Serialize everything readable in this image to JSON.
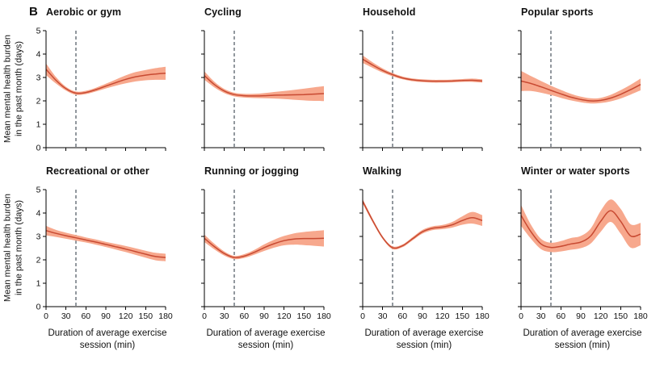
{
  "figure": {
    "label": "B",
    "y_axis_label_line1": "Mean mental health burden",
    "y_axis_label_line2": "in the past month (days)",
    "x_axis_label_line1": "Duration of average exercise",
    "x_axis_label_line2": "session (min)",
    "axes": {
      "xlim": [
        0,
        180
      ],
      "ylim": [
        0,
        5
      ],
      "x_ticks": [
        0,
        30,
        60,
        90,
        120,
        150,
        180
      ],
      "y_ticks": [
        0,
        1,
        2,
        3,
        4,
        5
      ],
      "reference_x": 45
    },
    "colors": {
      "band": "#F7A88D",
      "line": "#C84A32",
      "reference_line": "#49545E",
      "axis": "#000000",
      "text": "#111111"
    }
  },
  "chart_data": [
    {
      "type": "line",
      "title": "Aerobic or gym",
      "x": [
        0,
        15,
        30,
        45,
        60,
        75,
        90,
        105,
        120,
        135,
        150,
        165,
        180
      ],
      "mean": [
        3.35,
        2.88,
        2.52,
        2.33,
        2.36,
        2.48,
        2.63,
        2.78,
        2.92,
        3.03,
        3.1,
        3.15,
        3.18
      ],
      "lower": [
        3.1,
        2.74,
        2.44,
        2.26,
        2.29,
        2.4,
        2.53,
        2.65,
        2.75,
        2.83,
        2.88,
        2.9,
        2.9
      ],
      "upper": [
        3.6,
        3.02,
        2.6,
        2.4,
        2.43,
        2.56,
        2.73,
        2.91,
        3.09,
        3.23,
        3.32,
        3.4,
        3.46
      ]
    },
    {
      "type": "line",
      "title": "Cycling",
      "x": [
        0,
        15,
        30,
        45,
        60,
        75,
        90,
        105,
        120,
        135,
        150,
        165,
        180
      ],
      "mean": [
        3.08,
        2.7,
        2.42,
        2.27,
        2.22,
        2.21,
        2.22,
        2.24,
        2.25,
        2.26,
        2.27,
        2.29,
        2.31
      ],
      "lower": [
        2.9,
        2.58,
        2.33,
        2.19,
        2.14,
        2.12,
        2.11,
        2.1,
        2.08,
        2.05,
        2.02,
        2.0,
        1.99
      ],
      "upper": [
        3.26,
        2.82,
        2.51,
        2.35,
        2.3,
        2.3,
        2.33,
        2.38,
        2.42,
        2.47,
        2.52,
        2.58,
        2.63
      ]
    },
    {
      "type": "line",
      "title": "Household",
      "x": [
        0,
        15,
        30,
        45,
        60,
        75,
        90,
        105,
        120,
        135,
        150,
        165,
        180
      ],
      "mean": [
        3.78,
        3.53,
        3.3,
        3.12,
        2.98,
        2.9,
        2.86,
        2.84,
        2.84,
        2.85,
        2.87,
        2.88,
        2.85
      ],
      "lower": [
        3.62,
        3.41,
        3.21,
        3.05,
        2.92,
        2.84,
        2.8,
        2.78,
        2.78,
        2.79,
        2.81,
        2.81,
        2.78
      ],
      "upper": [
        3.94,
        3.65,
        3.39,
        3.19,
        3.04,
        2.96,
        2.92,
        2.9,
        2.9,
        2.91,
        2.93,
        2.95,
        2.92
      ]
    },
    {
      "type": "line",
      "title": "Popular sports",
      "x": [
        0,
        15,
        30,
        45,
        60,
        75,
        90,
        105,
        120,
        135,
        150,
        165,
        180
      ],
      "mean": [
        2.85,
        2.74,
        2.6,
        2.45,
        2.3,
        2.16,
        2.06,
        2.0,
        2.02,
        2.12,
        2.28,
        2.48,
        2.7
      ],
      "lower": [
        2.42,
        2.42,
        2.35,
        2.25,
        2.13,
        2.02,
        1.94,
        1.89,
        1.91,
        1.98,
        2.1,
        2.27,
        2.45
      ],
      "upper": [
        3.28,
        3.06,
        2.85,
        2.65,
        2.47,
        2.3,
        2.18,
        2.11,
        2.13,
        2.26,
        2.46,
        2.69,
        2.95
      ]
    },
    {
      "type": "line",
      "title": "Recreational or other",
      "x": [
        0,
        15,
        30,
        45,
        60,
        75,
        90,
        105,
        120,
        135,
        150,
        165,
        180
      ],
      "mean": [
        3.25,
        3.13,
        3.03,
        2.94,
        2.85,
        2.76,
        2.66,
        2.56,
        2.46,
        2.35,
        2.24,
        2.14,
        2.1
      ],
      "lower": [
        3.05,
        2.98,
        2.9,
        2.82,
        2.74,
        2.65,
        2.55,
        2.44,
        2.33,
        2.21,
        2.09,
        1.98,
        1.94
      ],
      "upper": [
        3.45,
        3.28,
        3.16,
        3.06,
        2.96,
        2.87,
        2.77,
        2.68,
        2.59,
        2.49,
        2.39,
        2.3,
        2.26
      ]
    },
    {
      "type": "line",
      "title": "Running or jogging",
      "x": [
        0,
        15,
        30,
        45,
        60,
        75,
        90,
        105,
        120,
        135,
        150,
        165,
        180
      ],
      "mean": [
        2.92,
        2.57,
        2.27,
        2.1,
        2.16,
        2.32,
        2.52,
        2.69,
        2.82,
        2.89,
        2.91,
        2.91,
        2.92
      ],
      "lower": [
        2.76,
        2.45,
        2.18,
        2.03,
        2.08,
        2.22,
        2.38,
        2.52,
        2.62,
        2.65,
        2.63,
        2.6,
        2.57
      ],
      "upper": [
        3.08,
        2.69,
        2.36,
        2.17,
        2.24,
        2.42,
        2.66,
        2.86,
        3.02,
        3.13,
        3.19,
        3.23,
        3.27
      ]
    },
    {
      "type": "line",
      "title": "Walking",
      "x": [
        0,
        15,
        30,
        45,
        60,
        75,
        90,
        105,
        120,
        135,
        150,
        165,
        180
      ],
      "mean": [
        4.5,
        3.68,
        2.95,
        2.52,
        2.6,
        2.9,
        3.2,
        3.35,
        3.4,
        3.5,
        3.68,
        3.8,
        3.68
      ],
      "lower": [
        4.4,
        3.6,
        2.89,
        2.46,
        2.54,
        2.83,
        3.12,
        3.27,
        3.31,
        3.38,
        3.5,
        3.55,
        3.45
      ],
      "upper": [
        4.6,
        3.76,
        3.01,
        2.58,
        2.66,
        2.97,
        3.28,
        3.43,
        3.49,
        3.62,
        3.86,
        4.05,
        3.91
      ]
    },
    {
      "type": "line",
      "title": "Winter or water sports",
      "x": [
        0,
        15,
        30,
        45,
        60,
        75,
        90,
        105,
        120,
        135,
        150,
        165,
        180
      ],
      "mean": [
        3.9,
        3.2,
        2.68,
        2.53,
        2.58,
        2.68,
        2.76,
        3.02,
        3.65,
        4.1,
        3.65,
        3.02,
        3.1
      ],
      "lower": [
        3.45,
        2.9,
        2.46,
        2.33,
        2.36,
        2.43,
        2.5,
        2.7,
        3.2,
        3.62,
        3.12,
        2.52,
        2.62
      ],
      "upper": [
        4.35,
        3.5,
        2.9,
        2.73,
        2.8,
        2.93,
        3.02,
        3.34,
        4.1,
        4.58,
        4.18,
        3.52,
        3.58
      ]
    }
  ]
}
